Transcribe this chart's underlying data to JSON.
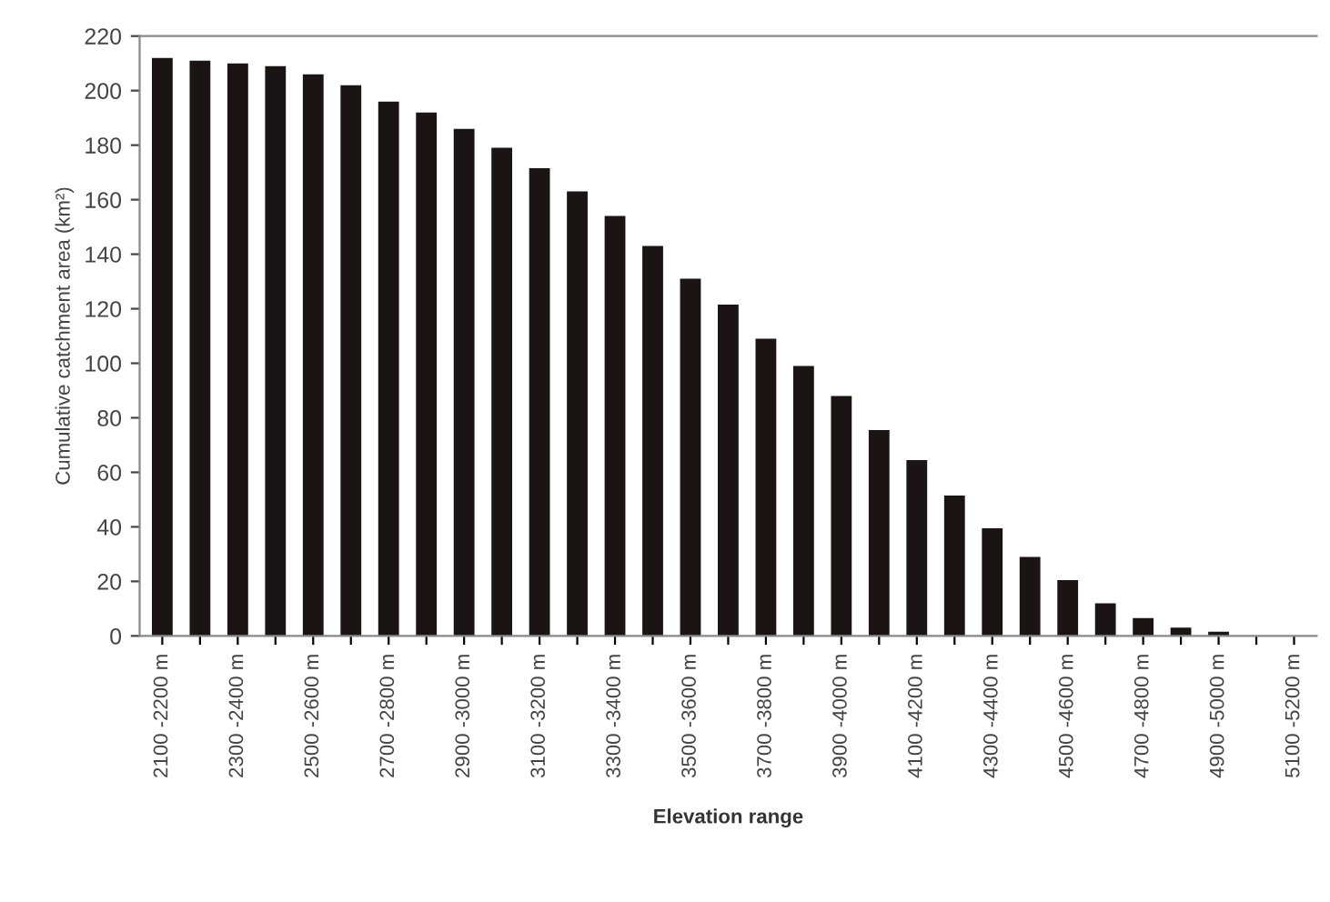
{
  "chart_data": {
    "type": "bar",
    "xlabel": "Elevation range",
    "ylabel": "Cumulative catchment area (km²)",
    "categories": [
      "2100 -2200 m",
      null,
      "2300 -2400 m",
      null,
      "2500 -2600 m",
      null,
      "2700 -2800 m",
      null,
      "2900 -3000 m",
      null,
      "3100 -3200 m",
      null,
      "3300 -3400 m",
      null,
      "3500 -3600 m",
      null,
      "3700 -3800 m",
      null,
      "3900 -4000 m",
      null,
      "4100 -4200 m",
      null,
      "4300 -4400 m",
      null,
      "4500 -4600 m",
      null,
      "4700 -4800 m",
      null,
      "4900 -5000 m",
      null,
      "5100 -5200 m"
    ],
    "values": [
      212,
      211,
      210,
      209,
      206,
      202,
      196,
      192,
      186,
      179,
      171.5,
      163,
      154,
      143,
      131,
      121.5,
      109,
      99,
      88,
      75.5,
      64.5,
      51.5,
      39.5,
      29,
      20.5,
      12,
      6.5,
      3,
      1.5,
      null,
      0
    ],
    "color": "#1a1414",
    "ylim": [
      0,
      220
    ],
    "yticks": [
      0,
      20,
      40,
      60,
      80,
      100,
      120,
      140,
      160,
      180,
      200,
      220
    ],
    "grid": false
  }
}
